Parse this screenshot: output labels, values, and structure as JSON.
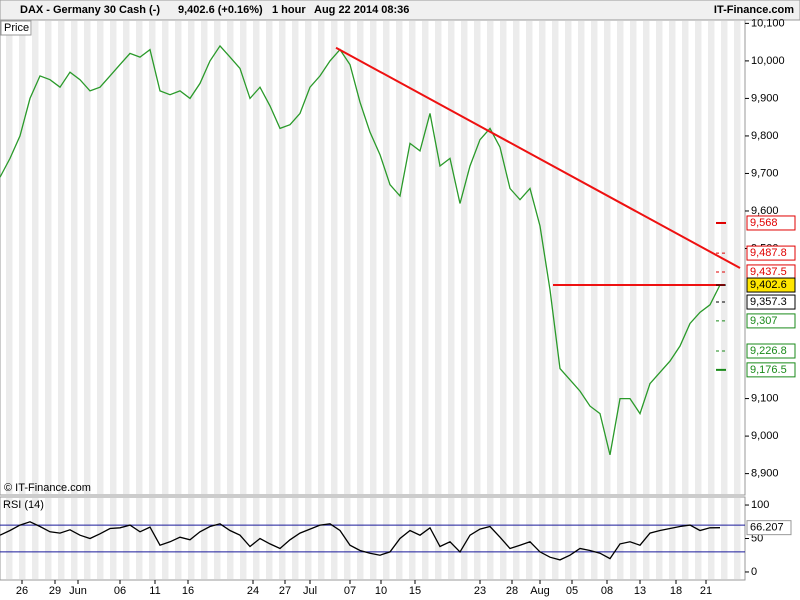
{
  "chart_data": [
    {
      "type": "line",
      "title": "DAX - Germany 30 Cash (-)",
      "price_text": "9,402.6 (+0.16%)",
      "interval": "1 hour",
      "timestamp": "Aug 22 2014 08:36",
      "source": "IT-Finance.com",
      "y_label": "Price",
      "copyright": "© IT-Finance.com",
      "x": [
        0,
        1,
        2,
        3,
        4,
        5,
        6,
        7,
        8,
        9,
        10,
        11,
        12,
        13,
        14,
        15,
        16,
        17,
        18,
        19,
        20,
        21,
        22,
        23,
        24,
        25,
        26,
        27,
        28,
        29,
        30,
        31,
        32,
        33,
        34,
        35,
        36,
        37,
        38,
        39,
        40,
        41,
        42,
        43,
        44,
        45,
        46,
        47,
        48,
        49,
        50,
        51,
        52,
        53,
        54,
        55,
        56,
        57,
        58,
        59,
        60,
        61,
        62,
        63,
        64,
        65,
        66,
        67,
        68,
        69,
        70,
        71,
        72
      ],
      "series": [
        {
          "color": "#2a9a2a",
          "values": [
            9690,
            9740,
            9800,
            9900,
            9960,
            9950,
            9930,
            9970,
            9950,
            9920,
            9930,
            9960,
            9990,
            10020,
            10010,
            10030,
            9920,
            9910,
            9920,
            9900,
            9940,
            10000,
            10040,
            10010,
            9980,
            9900,
            9930,
            9880,
            9820,
            9830,
            9860,
            9930,
            9960,
            10000,
            10030,
            9990,
            9890,
            9810,
            9750,
            9670,
            9640,
            9780,
            9760,
            9860,
            9720,
            9740,
            9620,
            9720,
            9790,
            9820,
            9770,
            9660,
            9630,
            9660,
            9560,
            9390,
            9180,
            9150,
            9120,
            9080,
            9060,
            8950,
            9100,
            9100,
            9060,
            9140,
            9170,
            9200,
            9240,
            9300,
            9330,
            9350,
            9402.6
          ]
        }
      ],
      "xlim": [
        0,
        74.5
      ],
      "ylim": [
        8843,
        10109
      ],
      "yticks": [
        {
          "value": 8900,
          "label": "8,900"
        },
        {
          "value": 9000,
          "label": "9,000"
        },
        {
          "value": 9100,
          "label": "9,100"
        },
        {
          "value": 9500,
          "label": "9,500"
        },
        {
          "value": 9600,
          "label": "9,600"
        },
        {
          "value": 9700,
          "label": "9,700"
        },
        {
          "value": 9800,
          "label": "9,800"
        },
        {
          "value": 9900,
          "label": "9,900"
        },
        {
          "value": 10000,
          "label": "10,000"
        },
        {
          "value": 10100,
          "label": "10,100"
        }
      ],
      "levels": [
        {
          "value": 9568,
          "label": "9,568",
          "color": "#e00000"
        },
        {
          "value": 9487.8,
          "label": "9,487.8",
          "color": "#e00000"
        },
        {
          "value": 9437.5,
          "label": "9,437.5",
          "color": "#e00000"
        },
        {
          "value": 9402.6,
          "label": "9,402.6",
          "color": "#000000"
        },
        {
          "value": 9357.3,
          "label": "9,357.3",
          "color": "#000000"
        },
        {
          "value": 9307,
          "label": "9,307",
          "color": "#1a8a1a"
        },
        {
          "value": 9226.8,
          "label": "9,226.8",
          "color": "#1a8a1a"
        },
        {
          "value": 9176.5,
          "label": "9,176.5",
          "color": "#1a8a1a"
        }
      ],
      "trendlines": [
        {
          "x": [
            33.6,
            74
          ],
          "y": [
            10035,
            9448
          ],
          "color": "#ee1111"
        },
        {
          "x": [
            55.3,
            72.5
          ],
          "y": [
            9402.6,
            9402.6
          ],
          "color": "#ee1111"
        }
      ]
    },
    {
      "type": "line",
      "title": "RSI (14)",
      "x": [
        0,
        1,
        2,
        3,
        4,
        5,
        6,
        7,
        8,
        9,
        10,
        11,
        12,
        13,
        14,
        15,
        16,
        17,
        18,
        19,
        20,
        21,
        22,
        23,
        24,
        25,
        26,
        27,
        28,
        29,
        30,
        31,
        32,
        33,
        34,
        35,
        36,
        37,
        38,
        39,
        40,
        41,
        42,
        43,
        44,
        45,
        46,
        47,
        48,
        49,
        50,
        51,
        52,
        53,
        54,
        55,
        56,
        57,
        58,
        59,
        60,
        61,
        62,
        63,
        64,
        65,
        66,
        67,
        68,
        69,
        70,
        71,
        72
      ],
      "series": [
        {
          "color": "#000000",
          "values": [
            55,
            62,
            70,
            75,
            68,
            60,
            58,
            63,
            55,
            50,
            57,
            65,
            66,
            70,
            60,
            67,
            40,
            45,
            52,
            48,
            60,
            68,
            72,
            62,
            55,
            38,
            50,
            42,
            35,
            48,
            58,
            64,
            70,
            72,
            62,
            40,
            32,
            28,
            25,
            30,
            50,
            62,
            55,
            66,
            38,
            45,
            30,
            55,
            64,
            68,
            52,
            35,
            40,
            45,
            30,
            22,
            18,
            25,
            35,
            32,
            28,
            20,
            42,
            45,
            40,
            58,
            62,
            65,
            68,
            70,
            62,
            66,
            66.207
          ]
        }
      ],
      "xlim": [
        0,
        74.5
      ],
      "ylim": [
        -12,
        112
      ],
      "yticks": [
        0,
        50,
        100
      ],
      "ref_lines": [
        30,
        70
      ],
      "ref_color": "#1a1a9a",
      "xticks": [
        {
          "value": 2.2,
          "label": "26"
        },
        {
          "value": 5.5,
          "label": "29"
        },
        {
          "value": 7.8,
          "label": "Jun"
        },
        {
          "value": 12,
          "label": "06"
        },
        {
          "value": 15.5,
          "label": "11"
        },
        {
          "value": 18.8,
          "label": "16"
        },
        {
          "value": 25.3,
          "label": "24"
        },
        {
          "value": 28.5,
          "label": "27"
        },
        {
          "value": 31,
          "label": "Jul"
        },
        {
          "value": 35,
          "label": "07"
        },
        {
          "value": 38.1,
          "label": "10"
        },
        {
          "value": 41.5,
          "label": "15"
        },
        {
          "value": 48,
          "label": "23"
        },
        {
          "value": 51.2,
          "label": "28"
        },
        {
          "value": 54,
          "label": "Aug"
        },
        {
          "value": 57.2,
          "label": "05"
        },
        {
          "value": 60.7,
          "label": "08"
        },
        {
          "value": 64,
          "label": "13"
        },
        {
          "value": 67.6,
          "label": "18"
        },
        {
          "value": 70.6,
          "label": "21"
        }
      ]
    }
  ]
}
